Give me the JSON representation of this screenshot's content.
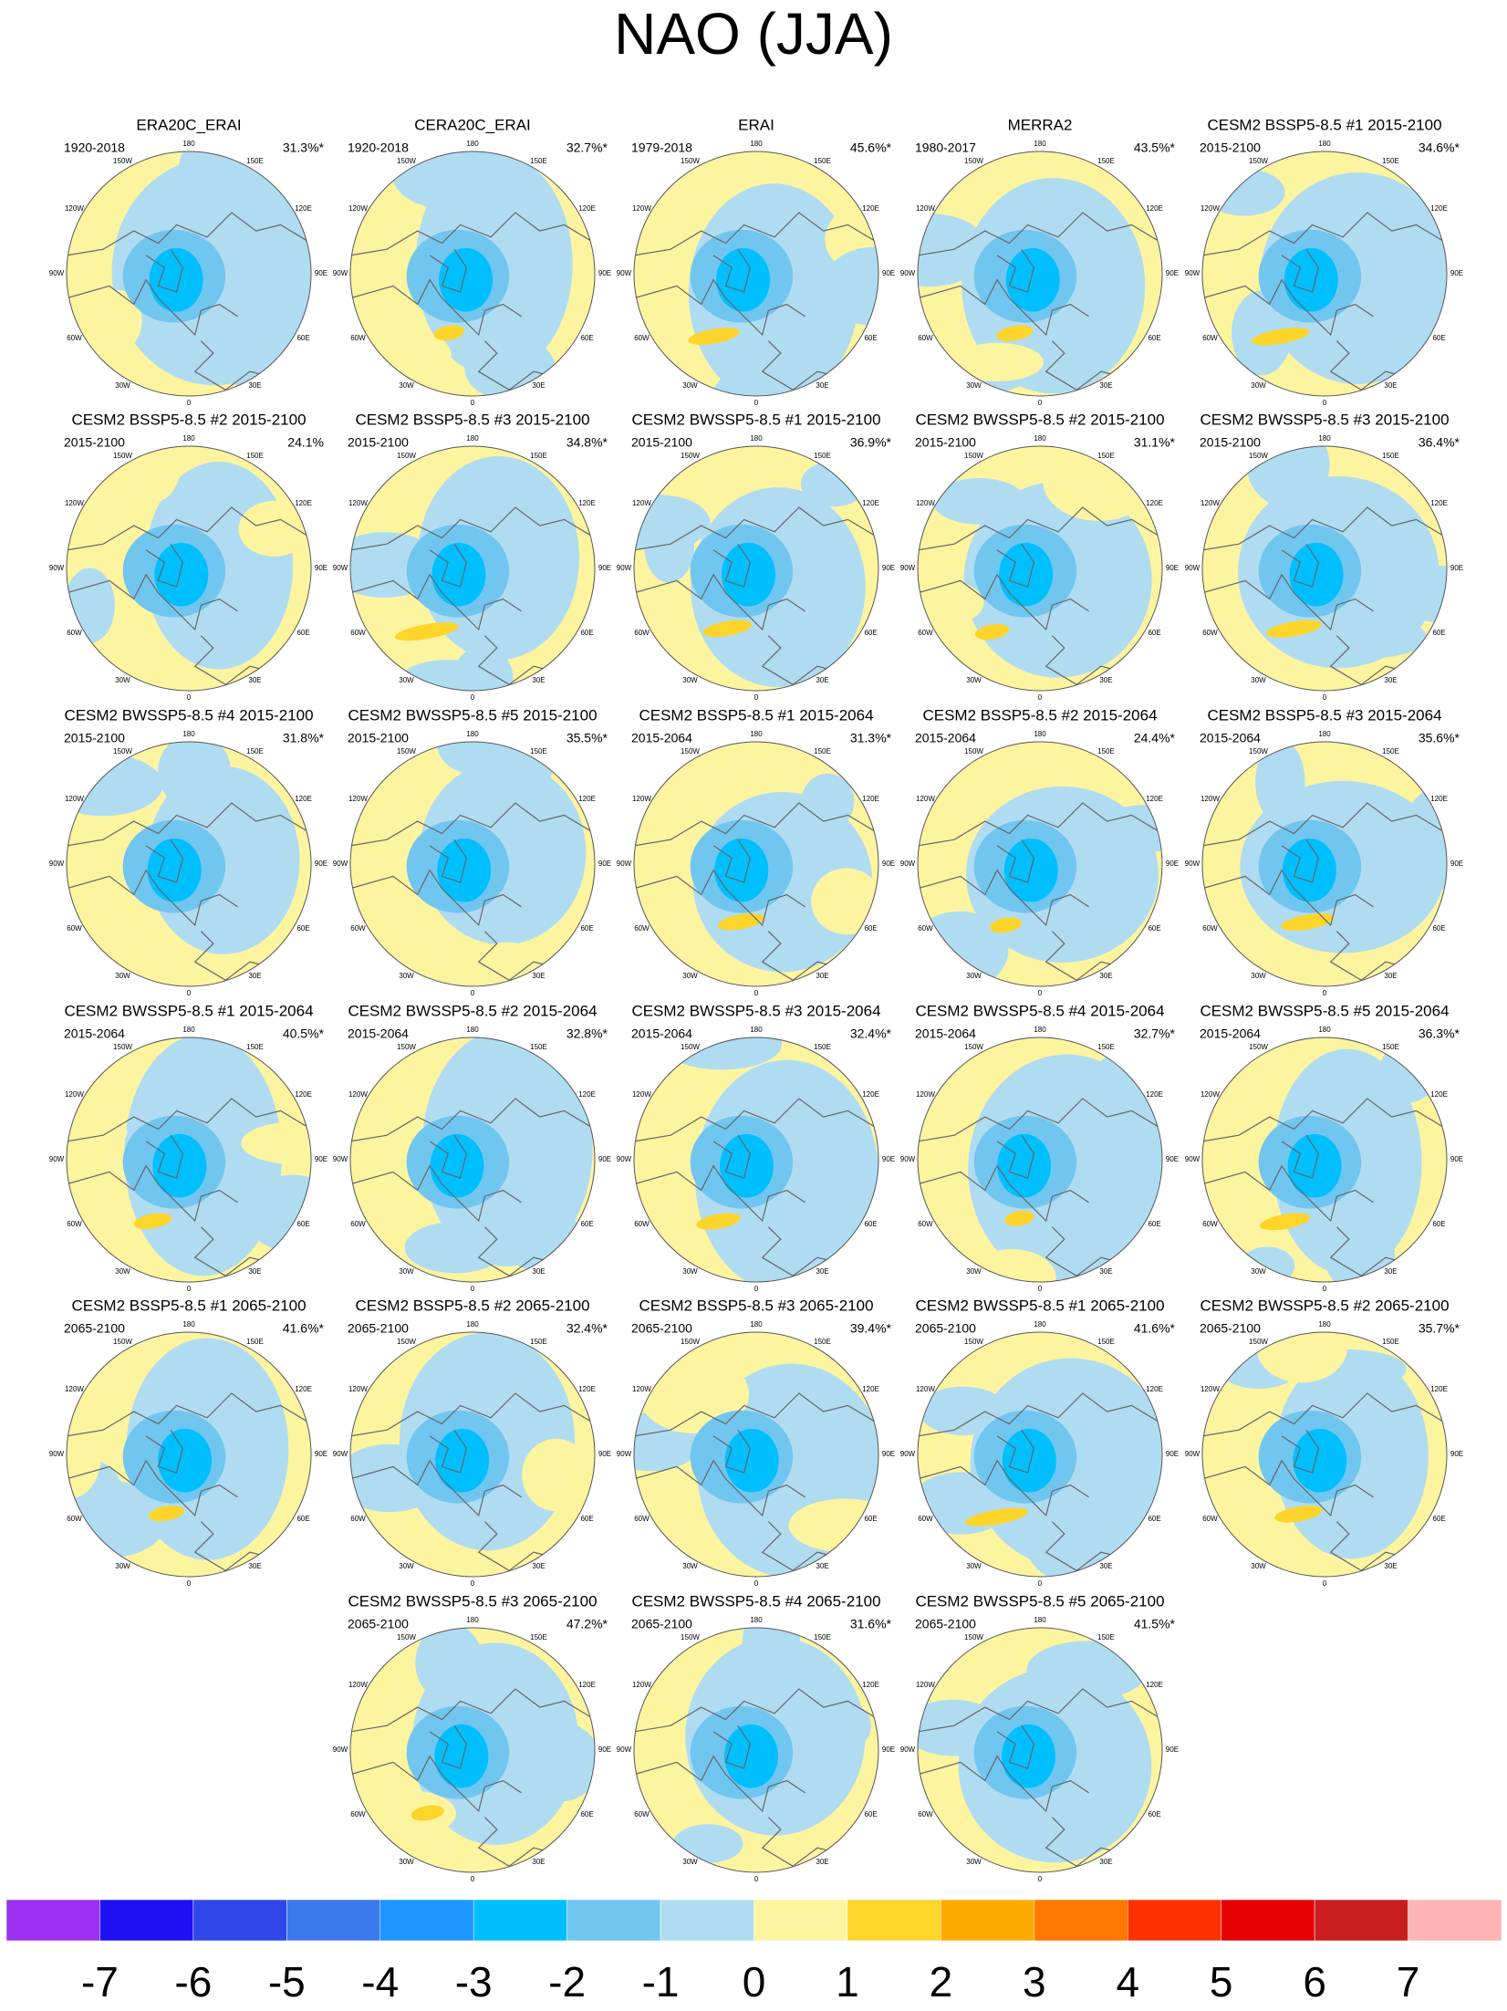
{
  "title": "NAO (JJA)",
  "lon_labels": [
    "180",
    "150E",
    "120E",
    "90E",
    "60E",
    "30E",
    "0",
    "30W",
    "60W",
    "90W",
    "120W",
    "150W"
  ],
  "panels": [
    {
      "title": "ERA20C_ERAI",
      "period": "1920-2018",
      "percent": "31.3%*"
    },
    {
      "title": "CERA20C_ERAI",
      "period": "1920-2018",
      "percent": "32.7%*"
    },
    {
      "title": "ERAI",
      "period": "1979-2018",
      "percent": "45.6%*"
    },
    {
      "title": "MERRA2",
      "period": "1980-2017",
      "percent": "43.5%*"
    },
    {
      "title": "CESM2 BSSP5-8.5 #1 2015-2100",
      "period": "2015-2100",
      "percent": "34.6%*"
    },
    {
      "title": "CESM2 BSSP5-8.5 #2 2015-2100",
      "period": "2015-2100",
      "percent": "24.1%"
    },
    {
      "title": "CESM2 BSSP5-8.5 #3 2015-2100",
      "period": "2015-2100",
      "percent": "34.8%*"
    },
    {
      "title": "CESM2 BWSSP5-8.5 #1 2015-2100",
      "period": "2015-2100",
      "percent": "36.9%*"
    },
    {
      "title": "CESM2 BWSSP5-8.5 #2 2015-2100",
      "period": "2015-2100",
      "percent": "31.1%*"
    },
    {
      "title": "CESM2 BWSSP5-8.5 #3 2015-2100",
      "period": "2015-2100",
      "percent": "36.4%*"
    },
    {
      "title": "CESM2 BWSSP5-8.5 #4 2015-2100",
      "period": "2015-2100",
      "percent": "31.8%*"
    },
    {
      "title": "CESM2 BWSSP5-8.5 #5 2015-2100",
      "period": "2015-2100",
      "percent": "35.5%*"
    },
    {
      "title": "CESM2 BSSP5-8.5 #1 2015-2064",
      "period": "2015-2064",
      "percent": "31.3%*"
    },
    {
      "title": "CESM2 BSSP5-8.5 #2 2015-2064",
      "period": "2015-2064",
      "percent": "24.4%*"
    },
    {
      "title": "CESM2 BSSP5-8.5 #3 2015-2064",
      "period": "2015-2064",
      "percent": "35.6%*"
    },
    {
      "title": "CESM2 BWSSP5-8.5 #1 2015-2064",
      "period": "2015-2064",
      "percent": "40.5%*"
    },
    {
      "title": "CESM2 BWSSP5-8.5 #2 2015-2064",
      "period": "2015-2064",
      "percent": "32.8%*"
    },
    {
      "title": "CESM2 BWSSP5-8.5 #3 2015-2064",
      "period": "2015-2064",
      "percent": "32.4%*"
    },
    {
      "title": "CESM2 BWSSP5-8.5 #4 2015-2064",
      "period": "2015-2064",
      "percent": "32.7%*"
    },
    {
      "title": "CESM2 BWSSP5-8.5 #5 2015-2064",
      "period": "2015-2064",
      "percent": "36.3%*"
    },
    {
      "title": "CESM2 BSSP5-8.5 #1 2065-2100",
      "period": "2065-2100",
      "percent": "41.6%*"
    },
    {
      "title": "CESM2 BSSP5-8.5 #2 2065-2100",
      "period": "2065-2100",
      "percent": "32.4%*"
    },
    {
      "title": "CESM2 BSSP5-8.5 #3 2065-2100",
      "period": "2065-2100",
      "percent": "39.4%*"
    },
    {
      "title": "CESM2 BWSSP5-8.5 #1 2065-2100",
      "period": "2065-2100",
      "percent": "41.6%*"
    },
    {
      "title": "CESM2 BWSSP5-8.5 #2 2065-2100",
      "period": "2065-2100",
      "percent": "35.7%*"
    },
    {
      "title": "CESM2 BWSSP5-8.5 #3 2065-2100",
      "period": "2065-2100",
      "percent": "47.2%*"
    },
    {
      "title": "CESM2 BWSSP5-8.5 #4 2065-2100",
      "period": "2065-2100",
      "percent": "31.6%*"
    },
    {
      "title": "CESM2 BWSSP5-8.5 #5 2065-2100",
      "period": "2065-2100",
      "percent": "41.5%*"
    }
  ],
  "colorbar": {
    "colors": [
      "#9b30f0",
      "#1e10f5",
      "#2f46e8",
      "#3a78ee",
      "#1e96ff",
      "#00bfff",
      "#71c6f0",
      "#b0dcf2",
      "#fdf4a0",
      "#fdd52a",
      "#ffaa00",
      "#ff7800",
      "#ff3000",
      "#e60000",
      "#c81e1e",
      "#ffb4b4"
    ],
    "ticks": [
      -7,
      -6,
      -5,
      -4,
      -3,
      -2,
      -1,
      0,
      1,
      2,
      3,
      4,
      5,
      6,
      7
    ]
  }
}
